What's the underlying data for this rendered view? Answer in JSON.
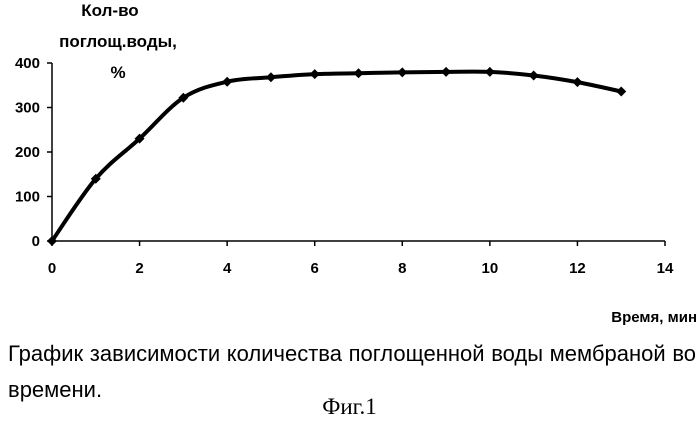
{
  "chart_data": {
    "type": "line",
    "ylabel_lines": [
      "Кол-во",
      "поглощ.воды,",
      "%"
    ],
    "xlabel": "Время, мин",
    "xlim": [
      0,
      14
    ],
    "ylim": [
      0,
      400
    ],
    "xticks": [
      0,
      2,
      4,
      6,
      8,
      10,
      12,
      14
    ],
    "yticks": [
      0,
      100,
      200,
      300,
      400
    ],
    "grid": false,
    "series": [
      {
        "marker": "diamond",
        "color": "#000000",
        "x": [
          0,
          1,
          2,
          3,
          4,
          5,
          6,
          7,
          8,
          9,
          10,
          11,
          12,
          13
        ],
        "y": [
          0,
          140,
          230,
          322,
          358,
          368,
          375,
          377,
          379,
          380,
          380,
          372,
          357,
          336
        ]
      }
    ]
  },
  "caption": "График зависимости количества поглощенной воды мембраной во времени.",
  "figure_label": "Фиг.1"
}
